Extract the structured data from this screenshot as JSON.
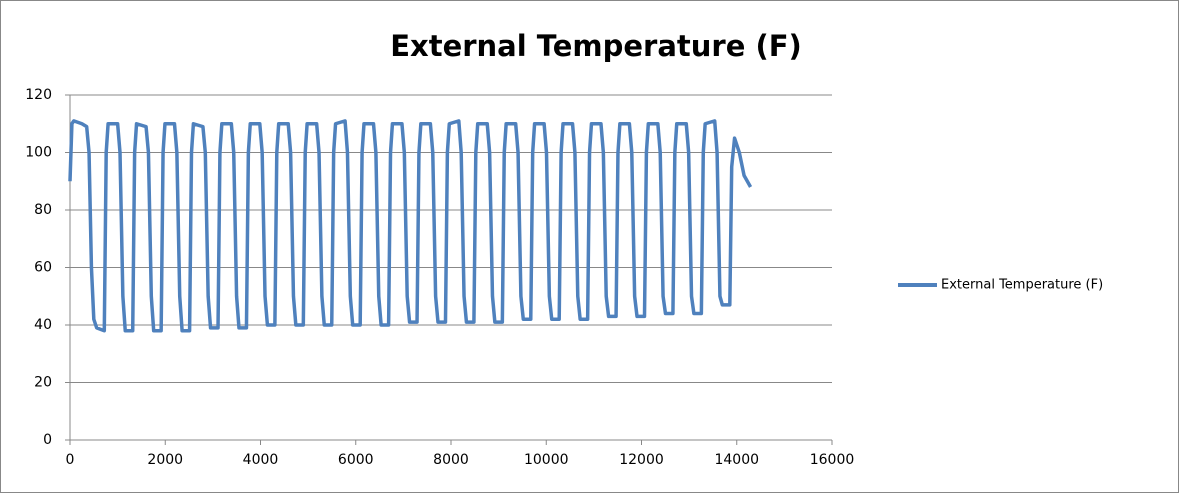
{
  "chart_data": {
    "type": "line",
    "title": "External Temperature (F)",
    "x": [
      0,
      40,
      80,
      250,
      350,
      400,
      450,
      500,
      560,
      720,
      760,
      800,
      1000,
      1050,
      1110,
      1160,
      1317,
      1357,
      1397,
      1597,
      1647,
      1707,
      1757,
      1914,
      1954,
      1994,
      2194,
      2244,
      2304,
      2354,
      2511,
      2551,
      2591,
      2791,
      2841,
      2901,
      2951,
      3108,
      3148,
      3188,
      3388,
      3438,
      3498,
      3548,
      3705,
      3745,
      3785,
      3985,
      4035,
      4095,
      4145,
      4302,
      4342,
      4382,
      4582,
      4632,
      4692,
      4742,
      4899,
      4939,
      4979,
      5179,
      5229,
      5289,
      5339,
      5496,
      5536,
      5576,
      5776,
      5826,
      5886,
      5936,
      6093,
      6133,
      6173,
      6373,
      6423,
      6483,
      6533,
      6690,
      6730,
      6770,
      6970,
      7020,
      7080,
      7130,
      7287,
      7327,
      7367,
      7567,
      7617,
      7677,
      7727,
      7884,
      7924,
      7964,
      8164,
      8214,
      8274,
      8324,
      8481,
      8521,
      8561,
      8761,
      8811,
      8871,
      8921,
      9078,
      9118,
      9158,
      9358,
      9408,
      9468,
      9518,
      9675,
      9715,
      9755,
      9955,
      10005,
      10065,
      10115,
      10272,
      10312,
      10352,
      10552,
      10602,
      10662,
      10712,
      10869,
      10909,
      10949,
      11149,
      11199,
      11259,
      11309,
      11466,
      11506,
      11546,
      11746,
      11796,
      11856,
      11906,
      12063,
      12103,
      12143,
      12343,
      12393,
      12453,
      12503,
      12660,
      12700,
      12740,
      12940,
      12990,
      13050,
      13100,
      13257,
      13297,
      13337,
      13537,
      13587,
      13647,
      13697,
      13854,
      13894,
      13954,
      14054,
      14154,
      14290
    ],
    "series": [
      {
        "name": "External Temperature  (F)",
        "color": "#4f81bd",
        "values": [
          90,
          110,
          111,
          110,
          109,
          100,
          60,
          42,
          39,
          38,
          100,
          110,
          110,
          100,
          50,
          38,
          38,
          100,
          110,
          109,
          100,
          50,
          38,
          38,
          100,
          110,
          110,
          100,
          50,
          38,
          38,
          100,
          110,
          109,
          100,
          50,
          39,
          39,
          100,
          110,
          110,
          100,
          50,
          39,
          39,
          100,
          110,
          110,
          100,
          50,
          40,
          40,
          100,
          110,
          110,
          100,
          50,
          40,
          40,
          100,
          110,
          110,
          100,
          50,
          40,
          40,
          100,
          110,
          111,
          100,
          50,
          40,
          40,
          100,
          110,
          110,
          100,
          50,
          40,
          40,
          100,
          110,
          110,
          100,
          50,
          41,
          41,
          100,
          110,
          110,
          100,
          50,
          41,
          41,
          100,
          110,
          111,
          100,
          50,
          41,
          41,
          100,
          110,
          110,
          100,
          50,
          41,
          41,
          100,
          110,
          110,
          100,
          50,
          42,
          42,
          100,
          110,
          110,
          100,
          50,
          42,
          42,
          100,
          110,
          110,
          100,
          50,
          42,
          42,
          100,
          110,
          110,
          100,
          50,
          43,
          43,
          100,
          110,
          110,
          100,
          50,
          43,
          43,
          100,
          110,
          110,
          100,
          50,
          44,
          44,
          100,
          110,
          110,
          100,
          50,
          44,
          44,
          100,
          110,
          111,
          100,
          50,
          47,
          47,
          95,
          105,
          100,
          92,
          88
        ]
      }
    ],
    "xlim": [
      0,
      16000
    ],
    "xticks": [
      0,
      2000,
      4000,
      6000,
      8000,
      10000,
      12000,
      14000,
      16000
    ],
    "ylim": [
      0,
      120
    ],
    "yticks": [
      0,
      20,
      40,
      60,
      80,
      100,
      120
    ],
    "grid": true,
    "legend": "right"
  }
}
